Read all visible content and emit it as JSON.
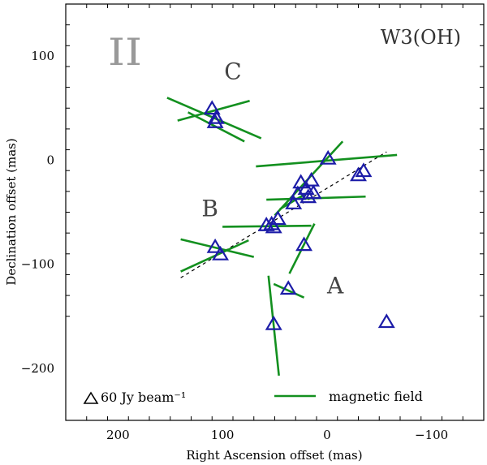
{
  "chart_data": {
    "type": "scatter",
    "panel_label": "II",
    "source_name": "W3(OH)",
    "xlabel": "Right Ascension offset (mas)",
    "ylabel": "Declination offset (mas)",
    "xlim": [
      250,
      -150
    ],
    "ylim": [
      -250,
      150
    ],
    "x_ticks": [
      200,
      100,
      0,
      -100
    ],
    "x_tick_labels": [
      "200",
      "100",
      "0",
      "−100"
    ],
    "y_ticks": [
      100,
      0,
      -100,
      -200
    ],
    "y_tick_labels": [
      "100",
      "0",
      "−100",
      "−200"
    ],
    "region_labels": [
      {
        "text": "C",
        "x": 90,
        "y": 78
      },
      {
        "text": "B",
        "x": 112,
        "y": -54
      },
      {
        "text": "A",
        "x": -8,
        "y": -128
      }
    ],
    "legend": {
      "triangle_text": "60 Jy beam⁻¹",
      "line_text": "magnetic field"
    },
    "colors": {
      "maser": "#1c1ca8",
      "field": "#13901f",
      "trend": "#000000",
      "axes": "#000000"
    },
    "trend_line": {
      "x1": 140,
      "y1": -113,
      "x2": -57,
      "y2": 8
    },
    "masers": [
      {
        "x": 110,
        "y": 49
      },
      {
        "x": 107,
        "y": 36
      },
      {
        "x": 106,
        "y": 40
      },
      {
        "x": -1,
        "y": 1
      },
      {
        "x": -35,
        "y": -11
      },
      {
        "x": -30,
        "y": -15
      },
      {
        "x": 15,
        "y": -20
      },
      {
        "x": 25,
        "y": -22
      },
      {
        "x": 20,
        "y": -28
      },
      {
        "x": 28,
        "y": -33
      },
      {
        "x": 18,
        "y": -36
      },
      {
        "x": 13,
        "y": -32
      },
      {
        "x": 32,
        "y": -42
      },
      {
        "x": 47,
        "y": -57
      },
      {
        "x": 53,
        "y": -62
      },
      {
        "x": 58,
        "y": -63
      },
      {
        "x": 51,
        "y": -65
      },
      {
        "x": 107,
        "y": -84
      },
      {
        "x": 102,
        "y": -91
      },
      {
        "x": 22,
        "y": -82
      },
      {
        "x": 37,
        "y": -124
      },
      {
        "x": 51,
        "y": -158
      },
      {
        "x": -57,
        "y": -156
      }
    ],
    "field_vectors": [
      {
        "x1": 153,
        "y1": 60,
        "x2": 63,
        "y2": 21
      },
      {
        "x1": 143,
        "y1": 38,
        "x2": 74,
        "y2": 57
      },
      {
        "x1": 133,
        "y1": 46,
        "x2": 79,
        "y2": 18
      },
      {
        "x1": 68,
        "y1": -6,
        "x2": -67,
        "y2": 5
      },
      {
        "x1": 58,
        "y1": -38,
        "x2": -37,
        "y2": -35
      },
      {
        "x1": 50,
        "y1": -53,
        "x2": -15,
        "y2": 18
      },
      {
        "x1": 20,
        "y1": -32,
        "x2": 45,
        "y2": -47
      },
      {
        "x1": 100,
        "y1": -64,
        "x2": 15,
        "y2": -63
      },
      {
        "x1": 140,
        "y1": -107,
        "x2": 75,
        "y2": -77
      },
      {
        "x1": 140,
        "y1": -76,
        "x2": 70,
        "y2": -93
      },
      {
        "x1": 36,
        "y1": -109,
        "x2": 12,
        "y2": -61
      },
      {
        "x1": 51,
        "y1": -119,
        "x2": 22,
        "y2": -132
      },
      {
        "x1": 56,
        "y1": -111,
        "x2": 46,
        "y2": -207
      }
    ]
  }
}
